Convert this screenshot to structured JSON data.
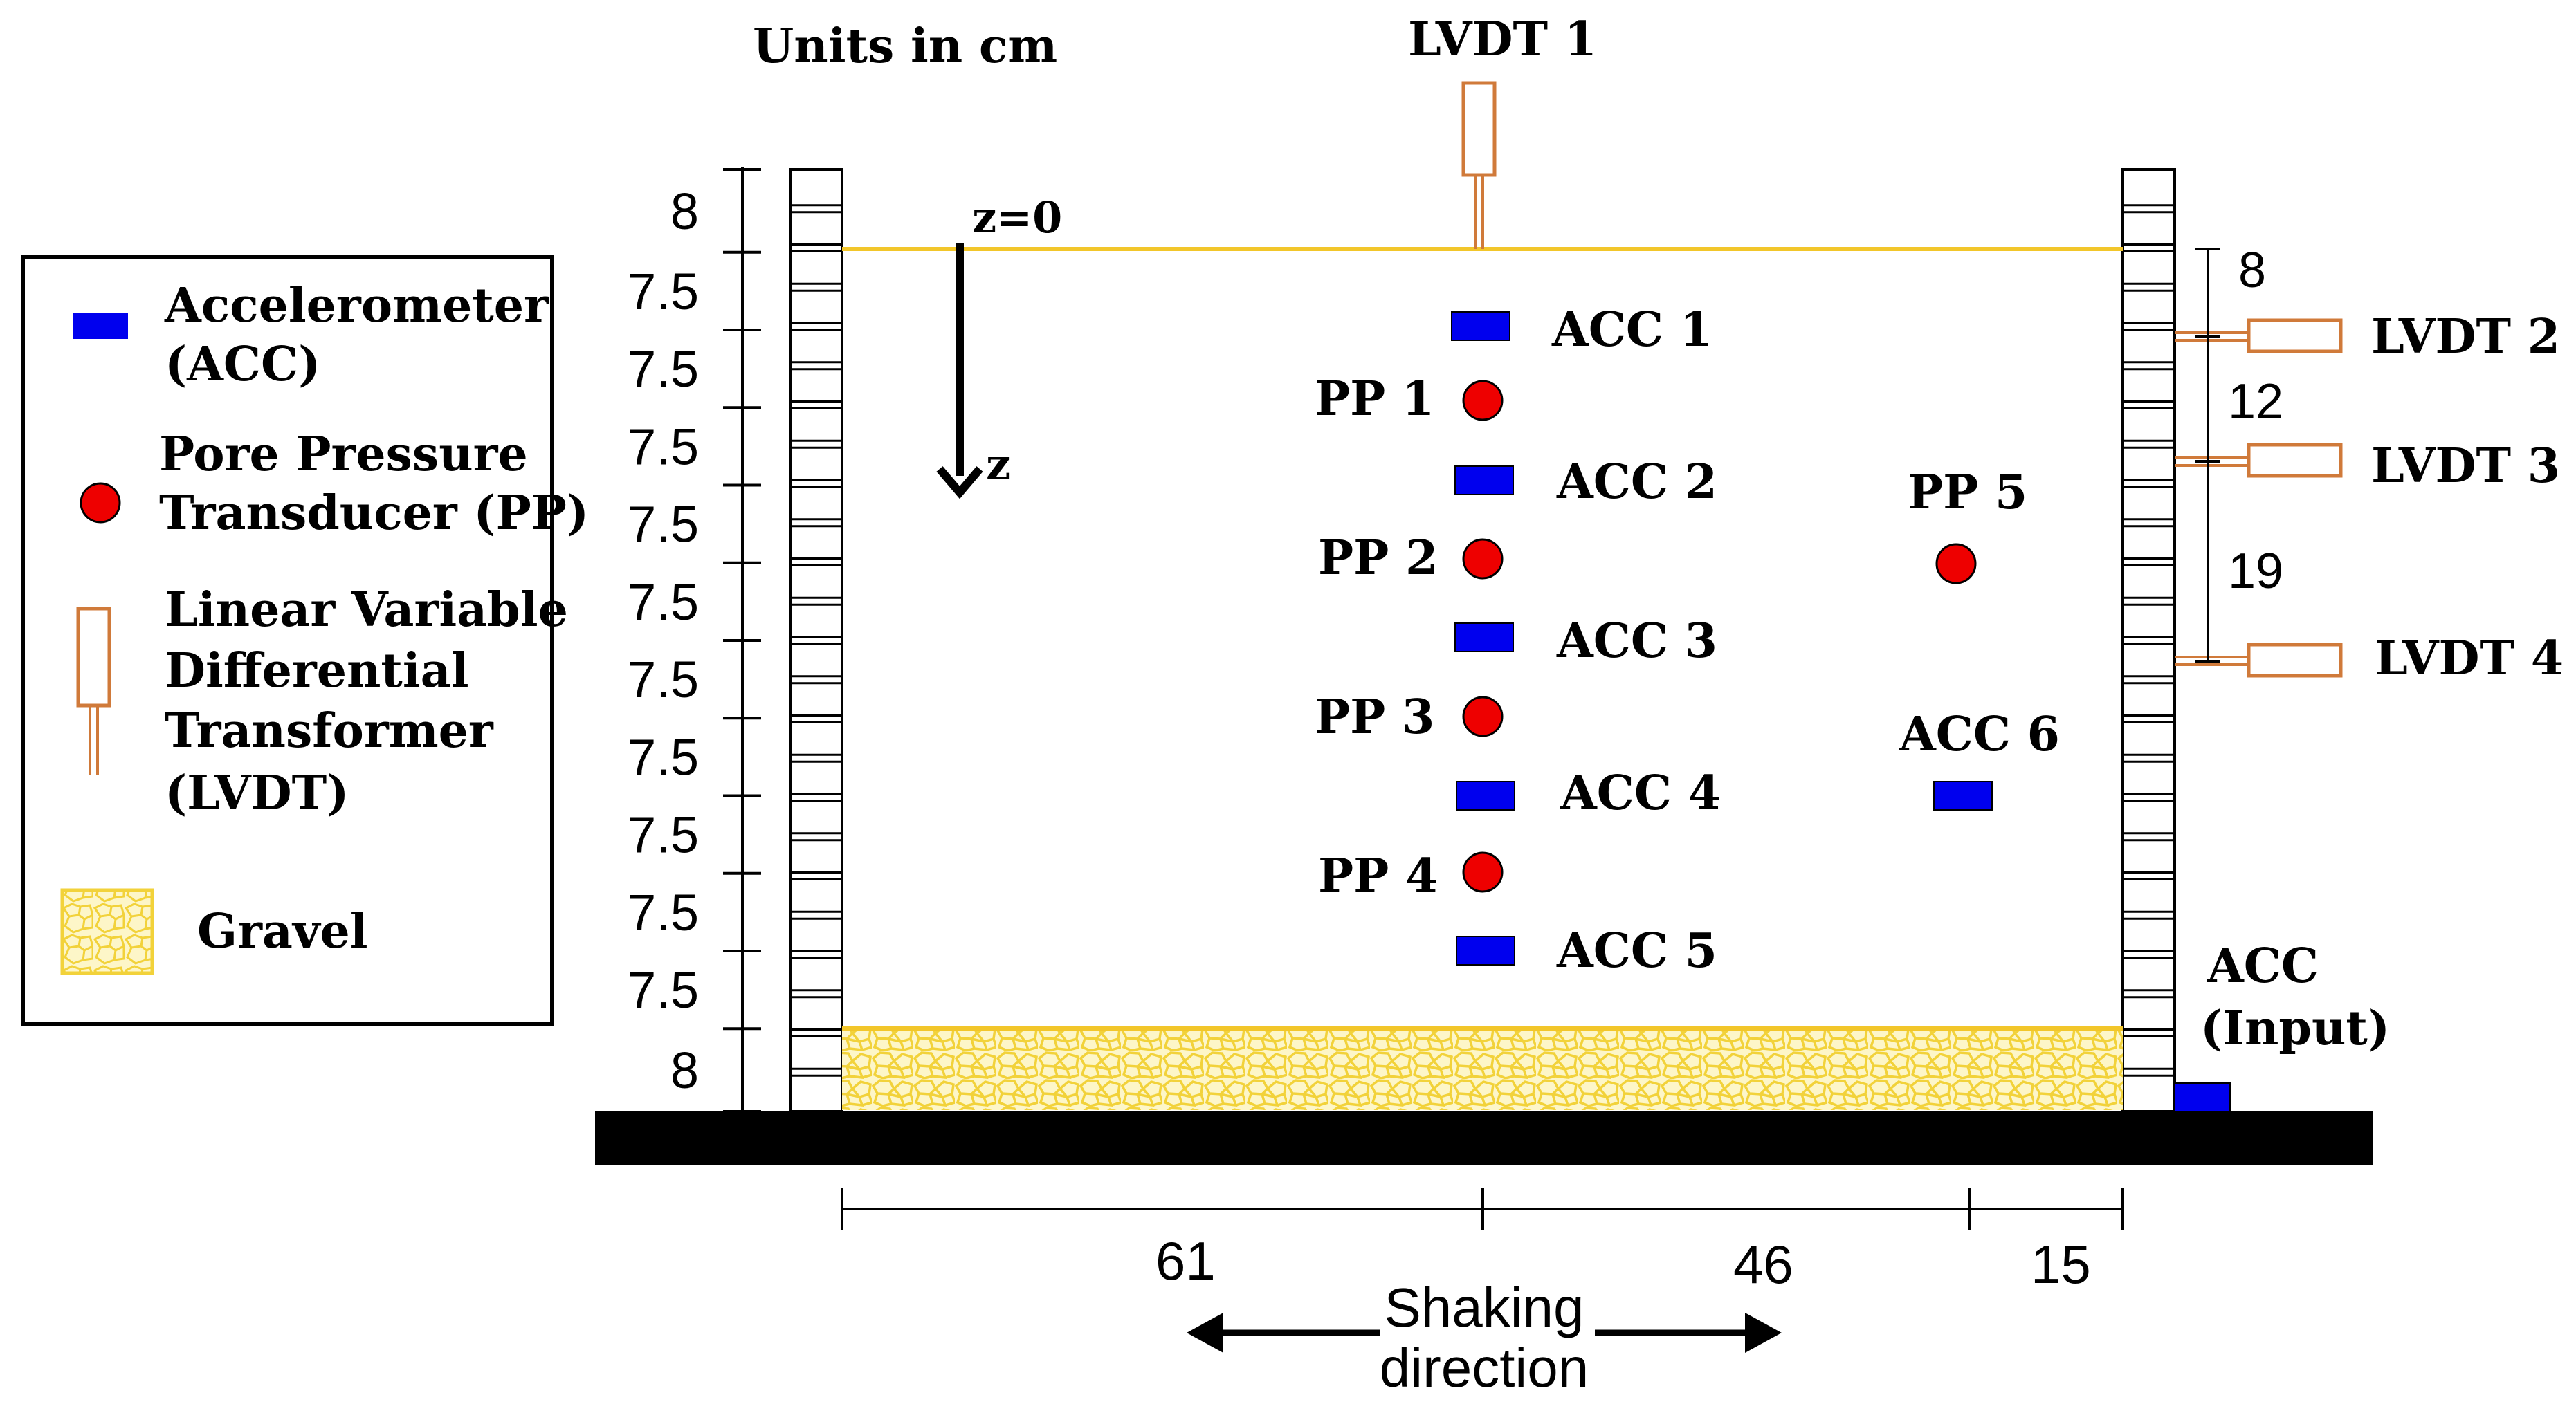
{
  "header": {
    "units_label": "Units in cm"
  },
  "legend": {
    "accelerometer_line1": "Accelerometer",
    "accelerometer_line2": "(ACC)",
    "pp_line1": "Pore Pressure",
    "pp_line2": "Transducer (PP)",
    "lvdt_line1": "Linear Variable",
    "lvdt_line2": "Differential",
    "lvdt_line3": "Transformer",
    "lvdt_line4": "(LVDT)",
    "gravel": "Gravel"
  },
  "layer_thicknesses": [
    "8",
    "7.5",
    "7.5",
    "7.5",
    "7.5",
    "7.5",
    "7.5",
    "7.5",
    "7.5",
    "7.5",
    "7.5",
    "8"
  ],
  "axis": {
    "z0": "z=0",
    "z": "z"
  },
  "sensors": {
    "lvdt1": "LVDT 1",
    "lvdt2": "LVDT 2",
    "lvdt3": "LVDT 3",
    "lvdt4": "LVDT 4",
    "acc1": "ACC 1",
    "acc2": "ACC 2",
    "acc3": "ACC 3",
    "acc4": "ACC 4",
    "acc5": "ACC 5",
    "acc6": "ACC 6",
    "acc_input_line1": "ACC",
    "acc_input_line2": "(Input)",
    "pp1": "PP 1",
    "pp2": "PP 2",
    "pp3": "PP 3",
    "pp4": "PP 4",
    "pp5": "PP 5"
  },
  "right_spacing": {
    "s1": "8",
    "s2": "12",
    "s3": "19"
  },
  "horizontal_spacing": {
    "s1": "61",
    "s2": "46",
    "s3": "15"
  },
  "shaking": {
    "line1": "Shaking",
    "line2": "direction"
  },
  "colors": {
    "accelerometer": "#0000ee",
    "pore_pressure": "#ee0000",
    "lvdt": "#d07a3a",
    "gravel": "#f2d23a",
    "water_line": "#f2c62a",
    "base": "#000000"
  }
}
